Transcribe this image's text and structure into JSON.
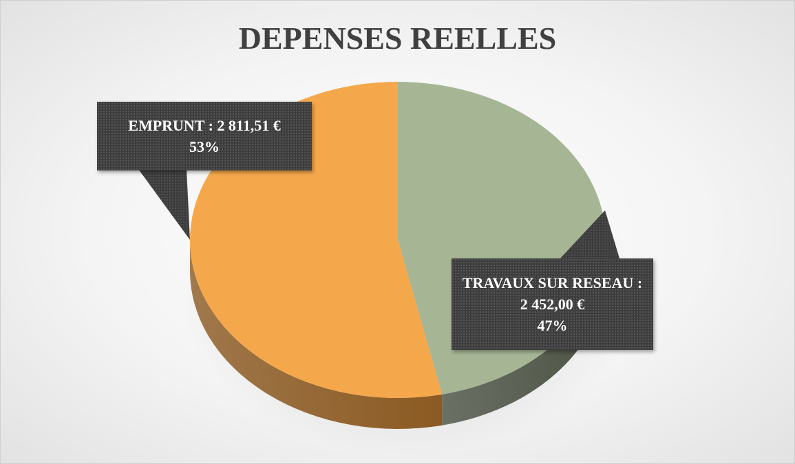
{
  "chart_data": {
    "type": "pie",
    "title": "DEPENSES REELLES",
    "categories": [
      "TRAVAUX SUR RESEAU",
      "EMPRUNT"
    ],
    "values": [
      2452.0,
      2811.51
    ],
    "value_labels": [
      "2 452,00 €",
      "2 811,51 €"
    ],
    "label_separator": " : ",
    "percents": [
      47,
      53
    ],
    "percent_labels": [
      "47%",
      "53%"
    ],
    "colors": [
      "#a6b695",
      "#f5a84b"
    ],
    "side_colors": [
      "#4b5243",
      "#8c5a22"
    ]
  }
}
